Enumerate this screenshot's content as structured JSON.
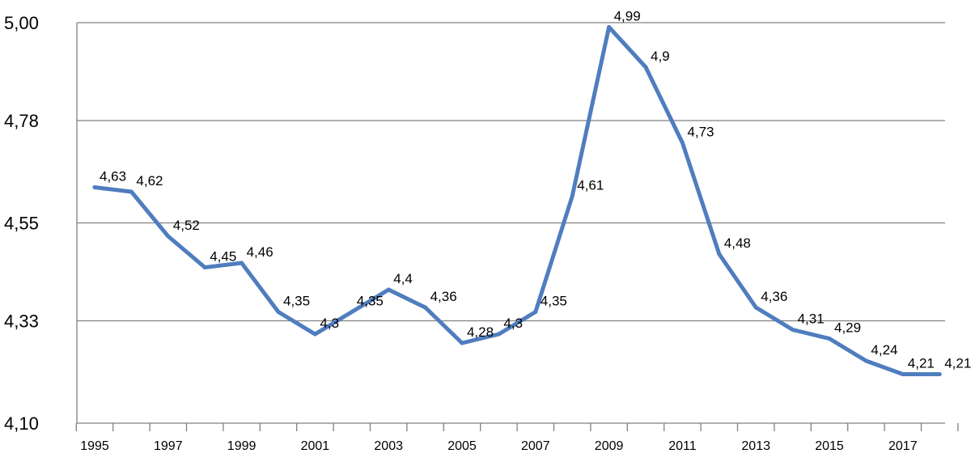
{
  "chart_data": {
    "type": "line",
    "title": "",
    "xlabel": "",
    "ylabel": "",
    "x": [
      1995,
      1996,
      1997,
      1998,
      1999,
      2000,
      2001,
      2002,
      2003,
      2004,
      2005,
      2006,
      2007,
      2008,
      2009,
      2010,
      2011,
      2012,
      2013,
      2014,
      2015,
      2016,
      2017,
      2018
    ],
    "x_tick_labels": [
      "1995",
      "1997",
      "1999",
      "2001",
      "2003",
      "2005",
      "2007",
      "2009",
      "2011",
      "2013",
      "2015",
      "2017"
    ],
    "y_tick_values": [
      4.1,
      4.33,
      4.55,
      4.78,
      5.0
    ],
    "y_tick_labels": [
      "4,10",
      "4,33",
      "4,55",
      "4,78",
      "5,00"
    ],
    "ylim": [
      4.1,
      5.0
    ],
    "grid": "horizontal",
    "series": [
      {
        "color": "#4f7dbf",
        "values": [
          4.63,
          4.62,
          4.52,
          4.45,
          4.46,
          4.35,
          4.3,
          4.35,
          4.4,
          4.36,
          4.28,
          4.3,
          4.35,
          4.61,
          4.99,
          4.9,
          4.73,
          4.48,
          4.36,
          4.31,
          4.29,
          4.24,
          4.21,
          4.21
        ],
        "data_labels": [
          "4,63",
          "4,62",
          "4,52",
          "4,45",
          "4,46",
          "4,35",
          "4,3",
          "4,35",
          "4,4",
          "4,36",
          "4,28",
          "4,3",
          "4,35",
          "4,61",
          "4,99",
          "4,9",
          "4,73",
          "4,48",
          "4,36",
          "4,31",
          "4,29",
          "4,24",
          "4,21",
          "4,21"
        ]
      }
    ]
  }
}
